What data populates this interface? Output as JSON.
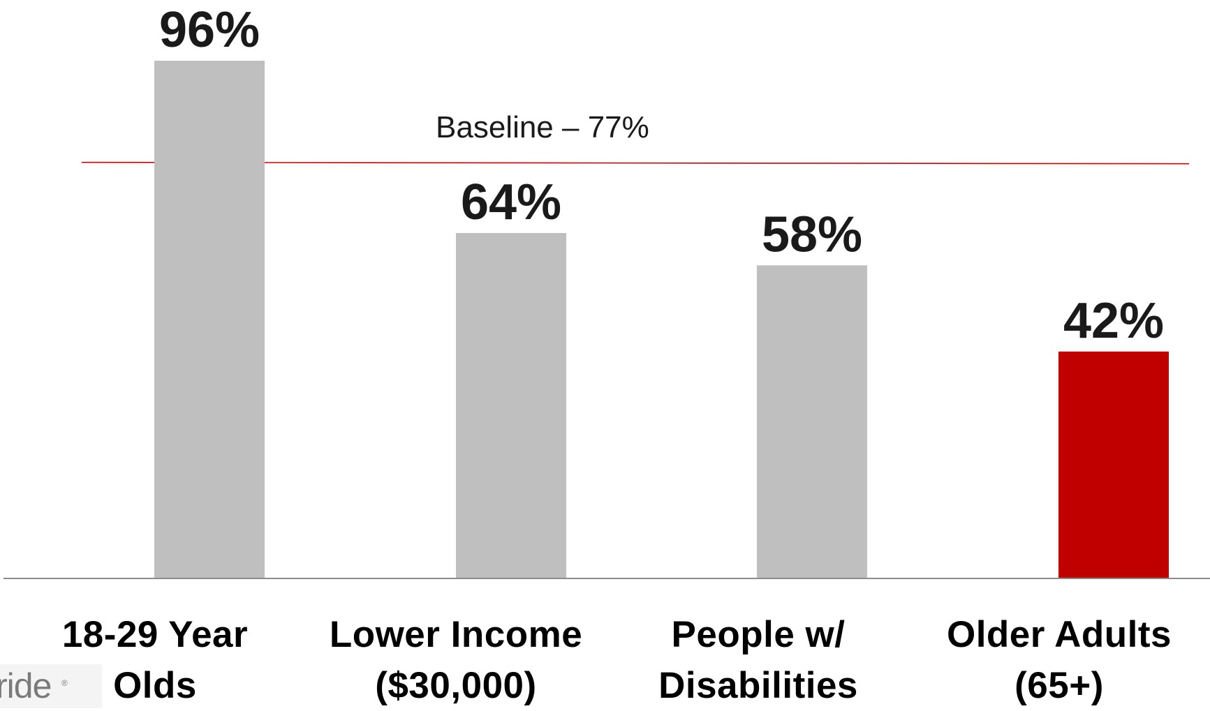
{
  "chart_data": {
    "type": "bar",
    "categories": [
      [
        "18-29 Year",
        "Olds"
      ],
      [
        "Lower Income",
        "($30,000)"
      ],
      [
        "People w/",
        "Disabilities"
      ],
      [
        "Older Adults",
        "(65+)"
      ]
    ],
    "values": [
      96,
      64,
      58,
      42
    ],
    "value_labels": [
      "96%",
      "64%",
      "58%",
      "42%"
    ],
    "bar_colors": [
      "#bfbfbf",
      "#bfbfbf",
      "#bfbfbf",
      "#c00000"
    ],
    "ylim": [
      0,
      100
    ],
    "baseline": {
      "value": 77,
      "label": "Baseline – 77%",
      "color": "#d40000"
    },
    "grid": false,
    "legend": "none"
  },
  "logo": {
    "text": "ride",
    "mark": "®"
  }
}
